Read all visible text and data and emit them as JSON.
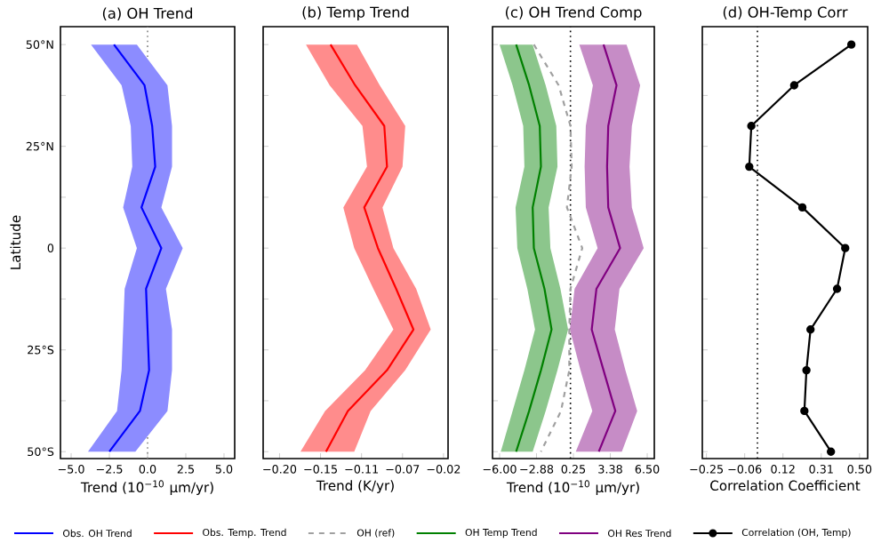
{
  "chart_data": [
    {
      "type": "line",
      "orientation": "horizontal",
      "title": "(a) OH Trend",
      "xlabel": "Trend (10$^{−10}$ μm/yr)",
      "ylabel": "Latitude",
      "legend": "bottom",
      "x": [
        50,
        40,
        30,
        20,
        10,
        0,
        -10,
        -20,
        -30,
        -40,
        -50
      ],
      "series": [
        {
          "name": "Obs. OH Trend",
          "color": "#0000ff",
          "values": [
            -2.2,
            -0.2,
            0.3,
            0.5,
            -0.4,
            0.9,
            -0.1,
            0,
            0.1,
            -0.5,
            -2.5
          ],
          "lower": [
            -3.7,
            -1.7,
            -1.1,
            -1.0,
            -1.6,
            -0.7,
            -1.5,
            -1.6,
            -1.7,
            -2.0,
            -3.9
          ],
          "upper": [
            -0.7,
            1.3,
            1.6,
            1.6,
            0.9,
            2.3,
            1.2,
            1.6,
            1.6,
            1.3,
            -0.8
          ]
        }
      ],
      "xlim": [
        -5.7,
        5.7
      ],
      "xticks": [
        {
          "value": -5,
          "label": "−5.0"
        },
        {
          "value": -2.5,
          "label": "−2.5"
        },
        {
          "value": 0,
          "label": "0.0"
        },
        {
          "value": 2.5,
          "label": "2.5"
        },
        {
          "value": 5,
          "label": "5.0"
        }
      ],
      "ylim": [
        -51.7,
        54.4
      ],
      "yticks": [
        {
          "value": 50,
          "label": "50°N"
        },
        {
          "value": 37.5,
          "label": null
        },
        {
          "value": 25,
          "label": "25°N"
        },
        {
          "value": 12.5,
          "label": null
        },
        {
          "value": 0,
          "label": "0"
        },
        {
          "value": -12.5,
          "label": null
        },
        {
          "value": -25,
          "label": "25°S"
        },
        {
          "value": -37.5,
          "label": null
        },
        {
          "value": -50,
          "label": "50°S"
        }
      ],
      "ref_lines": [
        {
          "axis": "x",
          "value": 0,
          "color": "#808080",
          "line_style": "dotted"
        }
      ]
    },
    {
      "type": "line",
      "orientation": "horizontal",
      "title": "(b) Temp Trend",
      "xlabel": "Trend (K/yr)",
      "legend": "bottom",
      "tick_labels": "x",
      "x": [
        50,
        40,
        30,
        20,
        10,
        0,
        -10,
        -20,
        -30,
        -40,
        -50
      ],
      "series": [
        {
          "name": "Obs. Temp. Trend",
          "color": "#ff0000",
          "values": [
            -0.144,
            -0.117,
            -0.085,
            -0.082,
            -0.107,
            -0.092,
            -0.072,
            -0.053,
            -0.082,
            -0.125,
            -0.149
          ],
          "lower": [
            -0.171,
            -0.145,
            -0.109,
            -0.104,
            -0.13,
            -0.118,
            -0.097,
            -0.075,
            -0.106,
            -0.15,
            -0.177
          ],
          "upper": [
            -0.115,
            -0.09,
            -0.062,
            -0.065,
            -0.087,
            -0.075,
            -0.05,
            -0.034,
            -0.062,
            -0.1,
            -0.118
          ]
        }
      ],
      "xlim": [
        -0.218,
        -0.015
      ],
      "xticks": [
        {
          "value": -0.2,
          "label": "−0.20"
        },
        {
          "value": -0.155,
          "label": "−0.15"
        },
        {
          "value": -0.11,
          "label": "−0.11"
        },
        {
          "value": -0.065,
          "label": "−0.07"
        },
        {
          "value": -0.02,
          "label": "−0.02"
        }
      ],
      "ylim": [
        -51.7,
        54.4
      ],
      "yticks": [
        {
          "value": 50,
          "label": null
        },
        {
          "value": 37.5,
          "label": null
        },
        {
          "value": 25,
          "label": null
        },
        {
          "value": 12.5,
          "label": null
        },
        {
          "value": 0,
          "label": null
        },
        {
          "value": -12.5,
          "label": null
        },
        {
          "value": -25,
          "label": null
        },
        {
          "value": -37.5,
          "label": null
        },
        {
          "value": -50,
          "label": null
        }
      ]
    },
    {
      "type": "line",
      "orientation": "horizontal",
      "title": "(c) OH Trend Comp",
      "xlabel": "Trend (10$^{−10}$ μm/yr)",
      "legend": "bottom",
      "tick_labels": "x",
      "x": [
        50,
        40,
        30,
        20,
        10,
        0,
        -10,
        -20,
        -30,
        -40,
        -50
      ],
      "series": [
        {
          "name": "OH (ref)",
          "color": "#a0a0a0",
          "line_style": "dashed",
          "values": [
            -3.1,
            -1.0,
            0,
            0.1,
            -0.3,
            1.0,
            0,
            -0.1,
            -0.1,
            -0.8,
            -2.5
          ]
        },
        {
          "name": "OH Temp Trend",
          "color": "#008000",
          "values": [
            -4.6,
            -3.5,
            -2.6,
            -2.5,
            -3.2,
            -3.1,
            -2.2,
            -1.6,
            -2.5,
            -3.5,
            -4.6
          ],
          "lower": [
            -6.0,
            -4.9,
            -4.0,
            -3.9,
            -4.65,
            -4.5,
            -3.65,
            -3.0,
            -3.9,
            -4.9,
            -5.9
          ],
          "upper": [
            -3.2,
            -2.1,
            -1.2,
            -1.1,
            -1.85,
            -1.7,
            -0.85,
            -0.2,
            -1.1,
            -2.1,
            -3.2
          ]
        },
        {
          "name": "OH Res Trend",
          "color": "#800080",
          "values": [
            2.8,
            3.9,
            3.2,
            3.1,
            3.2,
            4.2,
            2.2,
            1.8,
            2.8,
            3.8,
            2.4
          ],
          "lower": [
            0.75,
            1.9,
            1.3,
            1.2,
            1.3,
            2.3,
            0.35,
            -0.05,
            0.85,
            1.85,
            0.45
          ],
          "upper": [
            4.75,
            5.9,
            5.2,
            5.0,
            5.2,
            6.2,
            4.15,
            3.75,
            4.65,
            5.65,
            4.35
          ]
        }
      ],
      "xlim": [
        -6.6,
        7.1
      ],
      "xticks": [
        {
          "value": -6,
          "label": "−6.00"
        },
        {
          "value": -2.875,
          "label": "−2.88"
        },
        {
          "value": 0.25,
          "label": "0.25"
        },
        {
          "value": 3.375,
          "label": "3.38"
        },
        {
          "value": 6.5,
          "label": "6.50"
        }
      ],
      "ylim": [
        -51.7,
        54.4
      ],
      "yticks": [
        {
          "value": 50,
          "label": null
        },
        {
          "value": 37.5,
          "label": null
        },
        {
          "value": 25,
          "label": null
        },
        {
          "value": 12.5,
          "label": null
        },
        {
          "value": 0,
          "label": null
        },
        {
          "value": -12.5,
          "label": null
        },
        {
          "value": -25,
          "label": null
        },
        {
          "value": -37.5,
          "label": null
        },
        {
          "value": -50,
          "label": null
        }
      ],
      "ref_lines": [
        {
          "axis": "x",
          "value": 0,
          "color": "#000000",
          "line_style": "dotted"
        }
      ]
    },
    {
      "type": "line",
      "orientation": "horizontal",
      "title": "(d) OH-Temp Corr",
      "xlabel": "Correlation Coefficient",
      "legend": "bottom",
      "tick_labels": "x",
      "marker": "circle",
      "x": [
        50,
        40,
        30,
        20,
        10,
        0,
        -10,
        -20,
        -30,
        -40,
        -50
      ],
      "series": [
        {
          "name": "Correlation (OH, Temp)",
          "color": "#000000",
          "values": [
            0.46,
            0.18,
            -0.03,
            -0.04,
            0.22,
            0.43,
            0.39,
            0.26,
            0.24,
            0.23,
            0.36
          ]
        }
      ],
      "xlim": [
        -0.27,
        0.54
      ],
      "xticks": [
        {
          "value": -0.25,
          "label": "−0.25"
        },
        {
          "value": -0.0625,
          "label": "−0.06"
        },
        {
          "value": 0.125,
          "label": "0.12"
        },
        {
          "value": 0.3125,
          "label": "0.31"
        },
        {
          "value": 0.5,
          "label": "0.50"
        }
      ],
      "ylim": [
        -51.7,
        54.4
      ],
      "yticks": [
        {
          "value": 50,
          "label": null
        },
        {
          "value": 37.5,
          "label": null
        },
        {
          "value": 25,
          "label": null
        },
        {
          "value": 12.5,
          "label": null
        },
        {
          "value": 0,
          "label": null
        },
        {
          "value": -12.5,
          "label": null
        },
        {
          "value": -25,
          "label": null
        },
        {
          "value": -37.5,
          "label": null
        },
        {
          "value": -50,
          "label": null
        }
      ],
      "ref_lines": [
        {
          "axis": "x",
          "value": 0,
          "color": "#000000",
          "line_style": "dotted"
        }
      ]
    }
  ]
}
